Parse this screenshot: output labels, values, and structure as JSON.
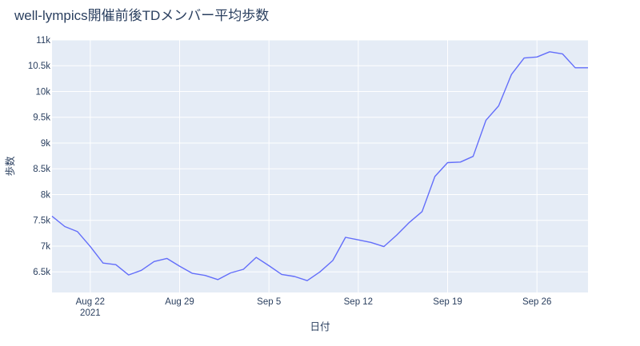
{
  "chart_data": {
    "type": "line",
    "title": "well-lympics開催前後TDメンバー平均歩数",
    "xlabel": "日付",
    "ylabel": "歩数",
    "x_range": [
      "2021-08-19",
      "2021-09-30"
    ],
    "ylim": [
      6100,
      11000
    ],
    "yticks": [
      6500,
      7000,
      7500,
      8000,
      8500,
      9000,
      9500,
      10000,
      10500,
      11000
    ],
    "ytick_labels": [
      "6.5k",
      "7k",
      "7.5k",
      "8k",
      "8.5k",
      "9k",
      "9.5k",
      "10k",
      "10.5k",
      "11k"
    ],
    "xticks": [
      {
        "date": "2021-08-22",
        "label": "Aug 22",
        "sublabel": "2021"
      },
      {
        "date": "2021-08-29",
        "label": "Aug 29"
      },
      {
        "date": "2021-09-05",
        "label": "Sep 5"
      },
      {
        "date": "2021-09-12",
        "label": "Sep 12"
      },
      {
        "date": "2021-09-19",
        "label": "Sep 19"
      },
      {
        "date": "2021-09-26",
        "label": "Sep 26"
      }
    ],
    "grid": true,
    "plot_background": "#e5ecf6",
    "line_color": "#636efa",
    "series": [
      {
        "x": [
          "2021-08-19",
          "2021-08-20",
          "2021-08-21",
          "2021-08-22",
          "2021-08-23",
          "2021-08-24",
          "2021-08-25",
          "2021-08-26",
          "2021-08-27",
          "2021-08-28",
          "2021-08-29",
          "2021-08-30",
          "2021-08-31",
          "2021-09-01",
          "2021-09-02",
          "2021-09-03",
          "2021-09-04",
          "2021-09-05",
          "2021-09-06",
          "2021-09-07",
          "2021-09-08",
          "2021-09-09",
          "2021-09-10",
          "2021-09-11",
          "2021-09-12",
          "2021-09-13",
          "2021-09-14",
          "2021-09-15",
          "2021-09-16",
          "2021-09-17",
          "2021-09-18",
          "2021-09-19",
          "2021-09-20",
          "2021-09-21",
          "2021-09-22",
          "2021-09-23",
          "2021-09-24",
          "2021-09-25",
          "2021-09-26",
          "2021-09-27",
          "2021-09-28",
          "2021-09-29",
          "2021-09-30"
        ],
        "y": [
          7580,
          7380,
          7280,
          6990,
          6670,
          6640,
          6440,
          6530,
          6700,
          6760,
          6610,
          6470,
          6430,
          6350,
          6480,
          6550,
          6780,
          6620,
          6450,
          6410,
          6330,
          6500,
          6720,
          7170,
          7120,
          7070,
          6990,
          7210,
          7460,
          7670,
          8350,
          8620,
          8630,
          8740,
          9440,
          9720,
          10330,
          10650,
          10670,
          10770,
          10730,
          10460,
          10460
        ]
      }
    ]
  }
}
